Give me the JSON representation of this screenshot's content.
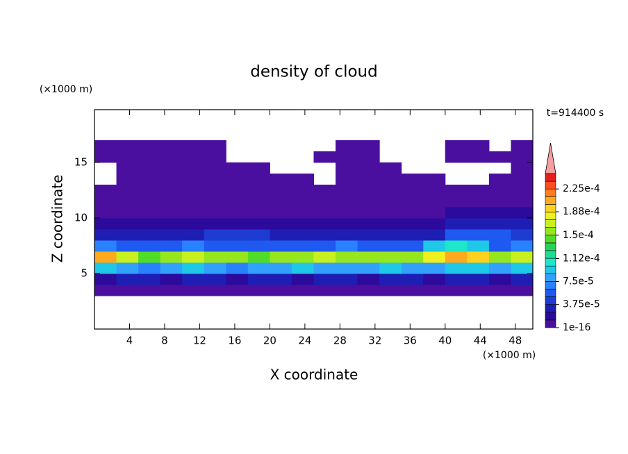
{
  "chart_data": {
    "type": "contour",
    "title": "density of cloud",
    "x_label": "X coordinate",
    "y_label": "Z coordinate",
    "x_unit_label": "(×1000 m)",
    "y_unit_label": "(×1000 m)",
    "annotation": "t=914400 s",
    "xlim": [
      0,
      50
    ],
    "ylim": [
      0,
      19.75
    ],
    "xticks": [
      4,
      8,
      12,
      16,
      20,
      24,
      28,
      32,
      36,
      40,
      44,
      48
    ],
    "yticks": [
      5,
      10,
      15
    ],
    "x": [
      1.25,
      3.75,
      6.25,
      8.75,
      11.25,
      13.75,
      16.25,
      18.75,
      21.25,
      23.75,
      26.25,
      28.75,
      31.25,
      33.75,
      36.25,
      38.75,
      41.25,
      43.75,
      46.25,
      48.75
    ],
    "y": [
      3.5,
      4.5,
      5.5,
      6.5,
      7.5,
      8.5,
      9.5,
      10.5,
      11.5,
      12.5,
      13.5,
      14.5,
      15.5,
      16.5
    ],
    "values": [
      [
        3e-06,
        3e-06,
        3e-06,
        3e-06,
        3e-06,
        3e-06,
        3e-06,
        3e-06,
        3e-06,
        3e-06,
        3e-06,
        3e-06,
        3e-06,
        3e-06,
        3e-06,
        3e-06,
        3e-06,
        3e-06,
        3e-06,
        3e-06
      ],
      [
        2e-05,
        3e-05,
        2.5e-05,
        2e-05,
        3e-05,
        2.5e-05,
        2e-05,
        3e-05,
        2.5e-05,
        2e-05,
        3e-05,
        2.5e-05,
        2e-05,
        3e-05,
        2.5e-05,
        2e-05,
        3e-05,
        2.5e-05,
        2e-05,
        3e-05
      ],
      [
        9e-05,
        8e-05,
        7e-05,
        8e-05,
        9e-05,
        8e-05,
        7e-05,
        8e-05,
        8.5e-05,
        9e-05,
        8e-05,
        7.5e-05,
        8e-05,
        9e-05,
        8e-05,
        8.5e-05,
        9.5e-05,
        9e-05,
        8e-05,
        9e-05
      ],
      [
        0.00021,
        0.00017,
        0.00014,
        0.00016,
        0.00017,
        0.00016,
        0.00015,
        0.00014,
        0.00015,
        0.00016,
        0.00017,
        0.00016,
        0.00015,
        0.00015,
        0.00016,
        0.00018,
        0.0002,
        0.00019,
        0.00015,
        0.00017
      ],
      [
        7e-05,
        6e-05,
        5.5e-05,
        6e-05,
        6.5e-05,
        6e-05,
        5.5e-05,
        6e-05,
        6e-05,
        5.5e-05,
        6e-05,
        6.5e-05,
        6e-05,
        5.5e-05,
        6e-05,
        9e-05,
        0.0001,
        9e-05,
        6e-05,
        6.5e-05
      ],
      [
        3e-05,
        3e-05,
        2.5e-05,
        3e-05,
        3e-05,
        4e-05,
        4e-05,
        4e-05,
        3e-05,
        3e-05,
        3e-05,
        3e-05,
        3e-05,
        3e-05,
        3e-05,
        3e-05,
        5e-05,
        5e-05,
        5e-05,
        4e-05
      ],
      [
        1.8e-05,
        1.8e-05,
        1.8e-05,
        1.8e-05,
        1.8e-05,
        1.8e-05,
        1.8e-05,
        1.8e-05,
        1.8e-05,
        1.8e-05,
        1.8e-05,
        1.8e-05,
        1.8e-05,
        1.8e-05,
        1.8e-05,
        1.8e-05,
        3e-05,
        3e-05,
        3e-05,
        3e-05
      ],
      [
        1e-05,
        1e-05,
        1e-05,
        1e-05,
        1e-05,
        1e-05,
        1e-05,
        1e-05,
        1e-05,
        1e-05,
        1e-05,
        1e-05,
        1e-05,
        1e-05,
        1e-05,
        1e-05,
        1.5e-05,
        1.5e-05,
        1.5e-05,
        1.5e-05
      ],
      [
        6e-06,
        6e-06,
        6e-06,
        6e-06,
        6e-06,
        6e-06,
        6e-06,
        6e-06,
        6e-06,
        6e-06,
        6e-06,
        6e-06,
        6e-06,
        6e-06,
        6e-06,
        6e-06,
        6e-06,
        6e-06,
        6e-06,
        6e-06
      ],
      [
        3e-06,
        3e-06,
        3e-06,
        3e-06,
        3e-06,
        3e-06,
        3e-06,
        3e-06,
        3e-06,
        3e-06,
        3e-06,
        3e-06,
        3e-06,
        3e-06,
        3e-06,
        3e-06,
        3e-06,
        3e-06,
        3e-06,
        3e-06
      ],
      [
        null,
        2e-06,
        2e-06,
        2e-06,
        2e-06,
        2e-06,
        2e-06,
        2e-06,
        2e-06,
        2e-06,
        null,
        2e-06,
        2e-06,
        2e-06,
        2e-06,
        2e-06,
        null,
        null,
        2e-06,
        2e-06
      ],
      [
        null,
        2e-06,
        2e-06,
        2e-06,
        2e-06,
        2e-06,
        2e-06,
        2e-06,
        null,
        null,
        null,
        2e-06,
        2e-06,
        2e-06,
        null,
        null,
        null,
        null,
        null,
        2e-06
      ],
      [
        2e-06,
        2e-06,
        2e-06,
        2e-06,
        2e-06,
        2e-06,
        null,
        null,
        null,
        null,
        2e-06,
        2e-06,
        2e-06,
        null,
        null,
        null,
        2e-06,
        2e-06,
        2e-06,
        2e-06
      ],
      [
        2e-06,
        2e-06,
        2e-06,
        2e-06,
        2e-06,
        2e-06,
        null,
        null,
        null,
        null,
        null,
        2e-06,
        2e-06,
        null,
        null,
        null,
        2e-06,
        2e-06,
        null,
        2e-06
      ]
    ],
    "colorbar": {
      "levels": [
        1e-16,
        1.25e-05,
        2.5e-05,
        3.75e-05,
        5e-05,
        6.25e-05,
        7.5e-05,
        8.75e-05,
        0.0001,
        0.0001125,
        0.000125,
        0.0001375,
        0.00015,
        0.0001625,
        0.000175,
        0.0001875,
        0.0002,
        0.0002125,
        0.000225,
        0.0002375,
        0.00025
      ],
      "colors": [
        "#4b0fa0",
        "#2c0a9c",
        "#1e1eb4",
        "#1e3cd2",
        "#1e5af0",
        "#2882ff",
        "#32a0ff",
        "#1ec8e6",
        "#1ee6c8",
        "#1edc96",
        "#28d25a",
        "#50dc28",
        "#96e61e",
        "#c8f01e",
        "#f0f01e",
        "#ffd21e",
        "#ffaa1e",
        "#ff7d1e",
        "#ff4b1e",
        "#e61e1e"
      ],
      "extend_color": "#f4a0a0",
      "ticks": [
        {
          "value": 1e-16,
          "label": "1e-16"
        },
        {
          "value": 3.75e-05,
          "label": "3.75e-5"
        },
        {
          "value": 7.5e-05,
          "label": "7.5e-5"
        },
        {
          "value": 0.000112,
          "label": "1.12e-4"
        },
        {
          "value": 0.00015,
          "label": "1.5e-4"
        },
        {
          "value": 0.000188,
          "label": "1.88e-4"
        },
        {
          "value": 0.000225,
          "label": "2.25e-4"
        }
      ]
    }
  }
}
